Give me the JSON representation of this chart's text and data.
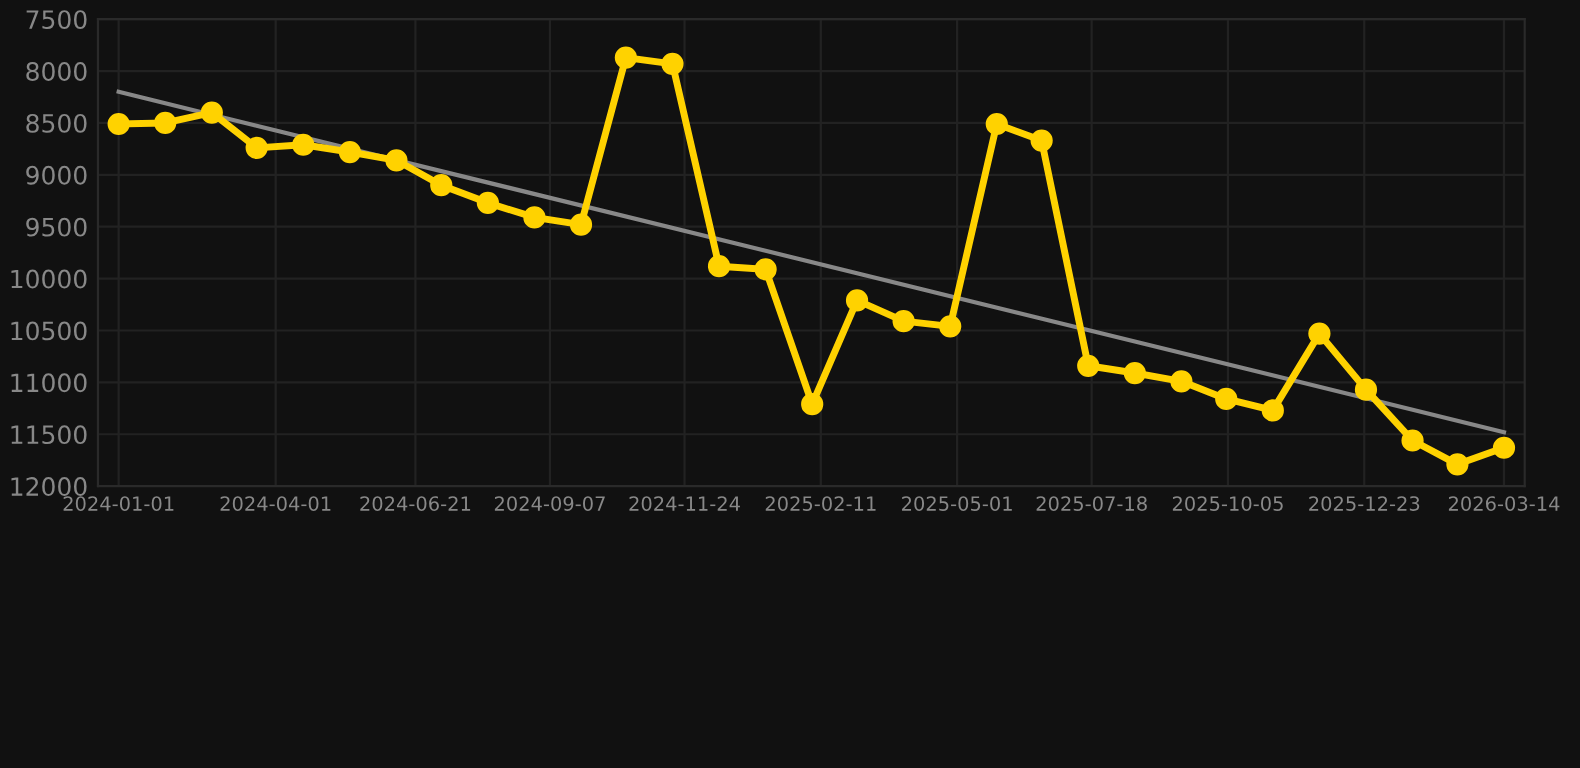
{
  "chart_data": {
    "type": "line",
    "x": [
      "2024-01-01",
      "2024-01-28",
      "2024-02-24",
      "2024-03-21",
      "2024-04-17",
      "2024-05-14",
      "2024-06-10",
      "2024-07-06",
      "2024-08-02",
      "2024-08-29",
      "2024-09-25",
      "2024-10-21",
      "2024-11-17",
      "2024-12-14",
      "2025-01-10",
      "2025-02-06",
      "2025-03-04",
      "2025-03-31",
      "2025-04-27",
      "2025-05-24",
      "2025-06-19",
      "2025-07-16",
      "2025-08-12",
      "2025-09-08",
      "2025-10-04",
      "2025-10-31",
      "2025-11-27",
      "2025-12-24",
      "2026-01-20",
      "2026-02-15",
      "2026-03-14"
    ],
    "series": [
      {
        "color": "#ffd200",
        "marker": "circle",
        "values": [
          8510,
          8500,
          8400,
          8740,
          8710,
          8780,
          8860,
          9100,
          9270,
          9410,
          9480,
          7870,
          7930,
          9880,
          9910,
          11210,
          10210,
          10410,
          10460,
          8510,
          8670,
          10840,
          10910,
          10990,
          11160,
          11270,
          10530,
          11070,
          11560,
          11790,
          11630
        ]
      },
      {
        "color": "#888888",
        "marker": "none",
        "x": [
          "2024-01-01",
          "2026-03-14"
        ],
        "values": [
          8200,
          11480
        ]
      }
    ],
    "xlim": [
      "2023-12-20",
      "2026-03-26"
    ],
    "xticks": [
      "2024-01-01",
      "2024-04-01",
      "2024-06-21",
      "2024-09-07",
      "2024-11-24",
      "2025-02-11",
      "2025-05-01",
      "2025-07-18",
      "2025-10-05",
      "2025-12-23",
      "2026-03-14"
    ],
    "ylim": [
      12000,
      7500
    ],
    "yticks": [
      7500,
      8000,
      8500,
      9000,
      9500,
      10000,
      10500,
      11000,
      11500,
      12000
    ],
    "grid": true
  }
}
